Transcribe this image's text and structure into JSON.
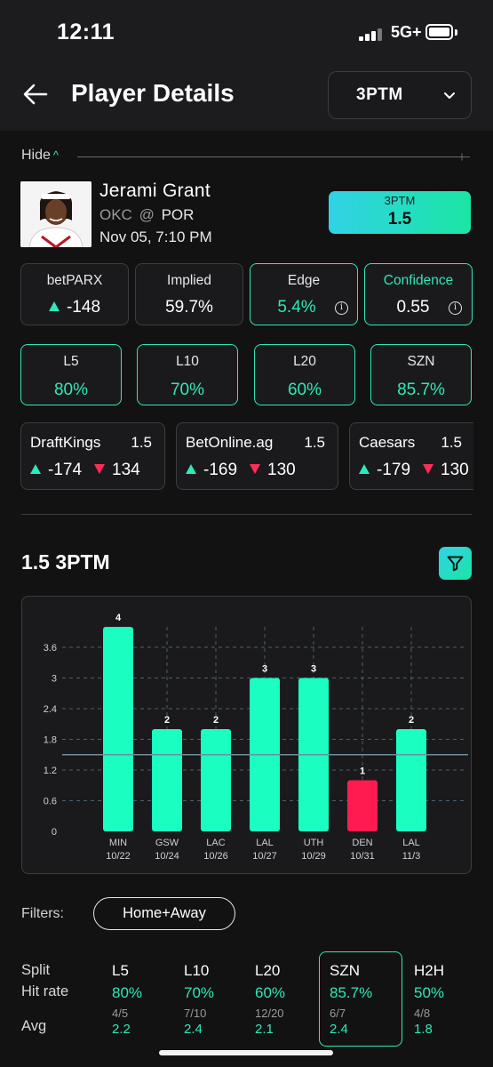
{
  "status_bar": {
    "time": "12:11",
    "network": "5G+"
  },
  "header": {
    "title": "Player Details",
    "market_select": "3PTM"
  },
  "hide_toggle": {
    "label": "Hide",
    "chevron": "^"
  },
  "player": {
    "name": "Jerami Grant",
    "team": "OKC",
    "at_symbol": "@",
    "opponent": "POR",
    "game_time": "Nov 05, 7:10 PM",
    "line_badge": {
      "market": "3PTM",
      "line": "1.5"
    }
  },
  "stats": {
    "book_label": "betPARX",
    "book_odds": "-148",
    "implied_label": "Implied",
    "implied_value": "59.7%",
    "edge_label": "Edge",
    "edge_value": "5.4%",
    "confidence_label": "Confidence",
    "confidence_value": "0.55"
  },
  "hit_windows": [
    {
      "label": "L5",
      "value": "80%"
    },
    {
      "label": "L10",
      "value": "70%"
    },
    {
      "label": "L20",
      "value": "60%"
    },
    {
      "label": "SZN",
      "value": "85.7%"
    }
  ],
  "books": [
    {
      "name": "DraftKings",
      "line": "1.5",
      "over": "-174",
      "under": "134"
    },
    {
      "name": "BetOnline.ag",
      "line": "1.5",
      "over": "-169",
      "under": "130"
    },
    {
      "name": "Caesars",
      "line": "1.5",
      "over": "-179",
      "under": "130"
    }
  ],
  "chart_section": {
    "title": "1.5 3PTM"
  },
  "chart_data": {
    "type": "bar",
    "categories": [
      "MIN 10/22",
      "GSW 10/24",
      "LAC 10/26",
      "LAL 10/27",
      "UTH 10/29",
      "DEN 10/31",
      "LAL 11/3"
    ],
    "opponents": [
      "MIN",
      "GSW",
      "LAC",
      "LAL",
      "UTH",
      "DEN",
      "LAL"
    ],
    "dates": [
      "10/22",
      "10/24",
      "10/26",
      "10/27",
      "10/29",
      "10/31",
      "11/3"
    ],
    "values": [
      4,
      2,
      2,
      3,
      3,
      1,
      2
    ],
    "data_labels": [
      "4",
      "2",
      "2",
      "3",
      "3",
      "1",
      "2"
    ],
    "result": [
      "over",
      "over",
      "over",
      "over",
      "over",
      "under",
      "over"
    ],
    "line": 1.5,
    "yticks": [
      "0",
      "0.6",
      "1.2",
      "1.8",
      "2.4",
      "3",
      "3.6"
    ],
    "ylim": [
      0,
      4
    ],
    "grid": true,
    "colors": {
      "over": "#1affc1",
      "under": "#ff1a50",
      "line": "#6e8ea0",
      "grid": "#4a5f6e"
    }
  },
  "filters": {
    "label": "Filters:",
    "chip": "Home+Away"
  },
  "splits": {
    "row_labels": [
      "Split",
      "Hit rate",
      "Avg"
    ],
    "columns": [
      {
        "name": "L5",
        "rate": "80%",
        "count": "4/5",
        "avg": "2.2"
      },
      {
        "name": "L10",
        "rate": "70%",
        "count": "7/10",
        "avg": "2.4"
      },
      {
        "name": "L20",
        "rate": "60%",
        "count": "12/20",
        "avg": "2.1"
      },
      {
        "name": "SZN",
        "rate": "85.7%",
        "count": "6/7",
        "avg": "2.4"
      },
      {
        "name": "H2H",
        "rate": "50%",
        "count": "4/8",
        "avg": "1.8"
      }
    ],
    "selected": "SZN"
  },
  "colors": {
    "accent": "#2fe8b8",
    "negative": "#ff2d55",
    "background": "#121212",
    "card": "#1a1a1c"
  }
}
